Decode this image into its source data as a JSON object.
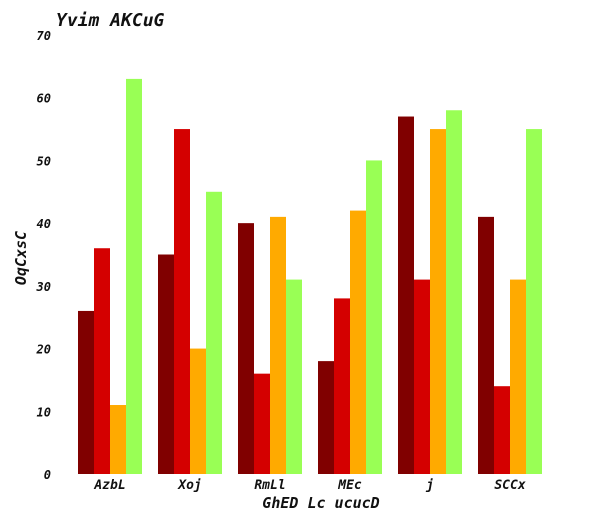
{
  "chart_data": {
    "type": "bar",
    "title": "Yvim AKCuG",
    "xlabel": "GhED Lc ucucD",
    "ylabel": "OqCxsC",
    "ylim": [
      0,
      70
    ],
    "yticks": [
      0,
      10,
      20,
      30,
      40,
      50,
      60,
      70
    ],
    "grid": false,
    "legend": "none",
    "categories": [
      "AzbL",
      "Xoj",
      "RmLl",
      "MEc",
      "j",
      "SCCx"
    ],
    "series": [
      {
        "color": "#800000",
        "values": [
          26,
          35,
          40,
          18,
          57,
          41
        ]
      },
      {
        "color": "#d40000",
        "values": [
          36,
          55,
          16,
          28,
          31,
          14
        ]
      },
      {
        "color": "#ffaa00",
        "values": [
          11,
          20,
          41,
          42,
          55,
          31
        ]
      },
      {
        "color": "#99ff55",
        "values": [
          63,
          45,
          31,
          50,
          58,
          55
        ]
      }
    ]
  }
}
